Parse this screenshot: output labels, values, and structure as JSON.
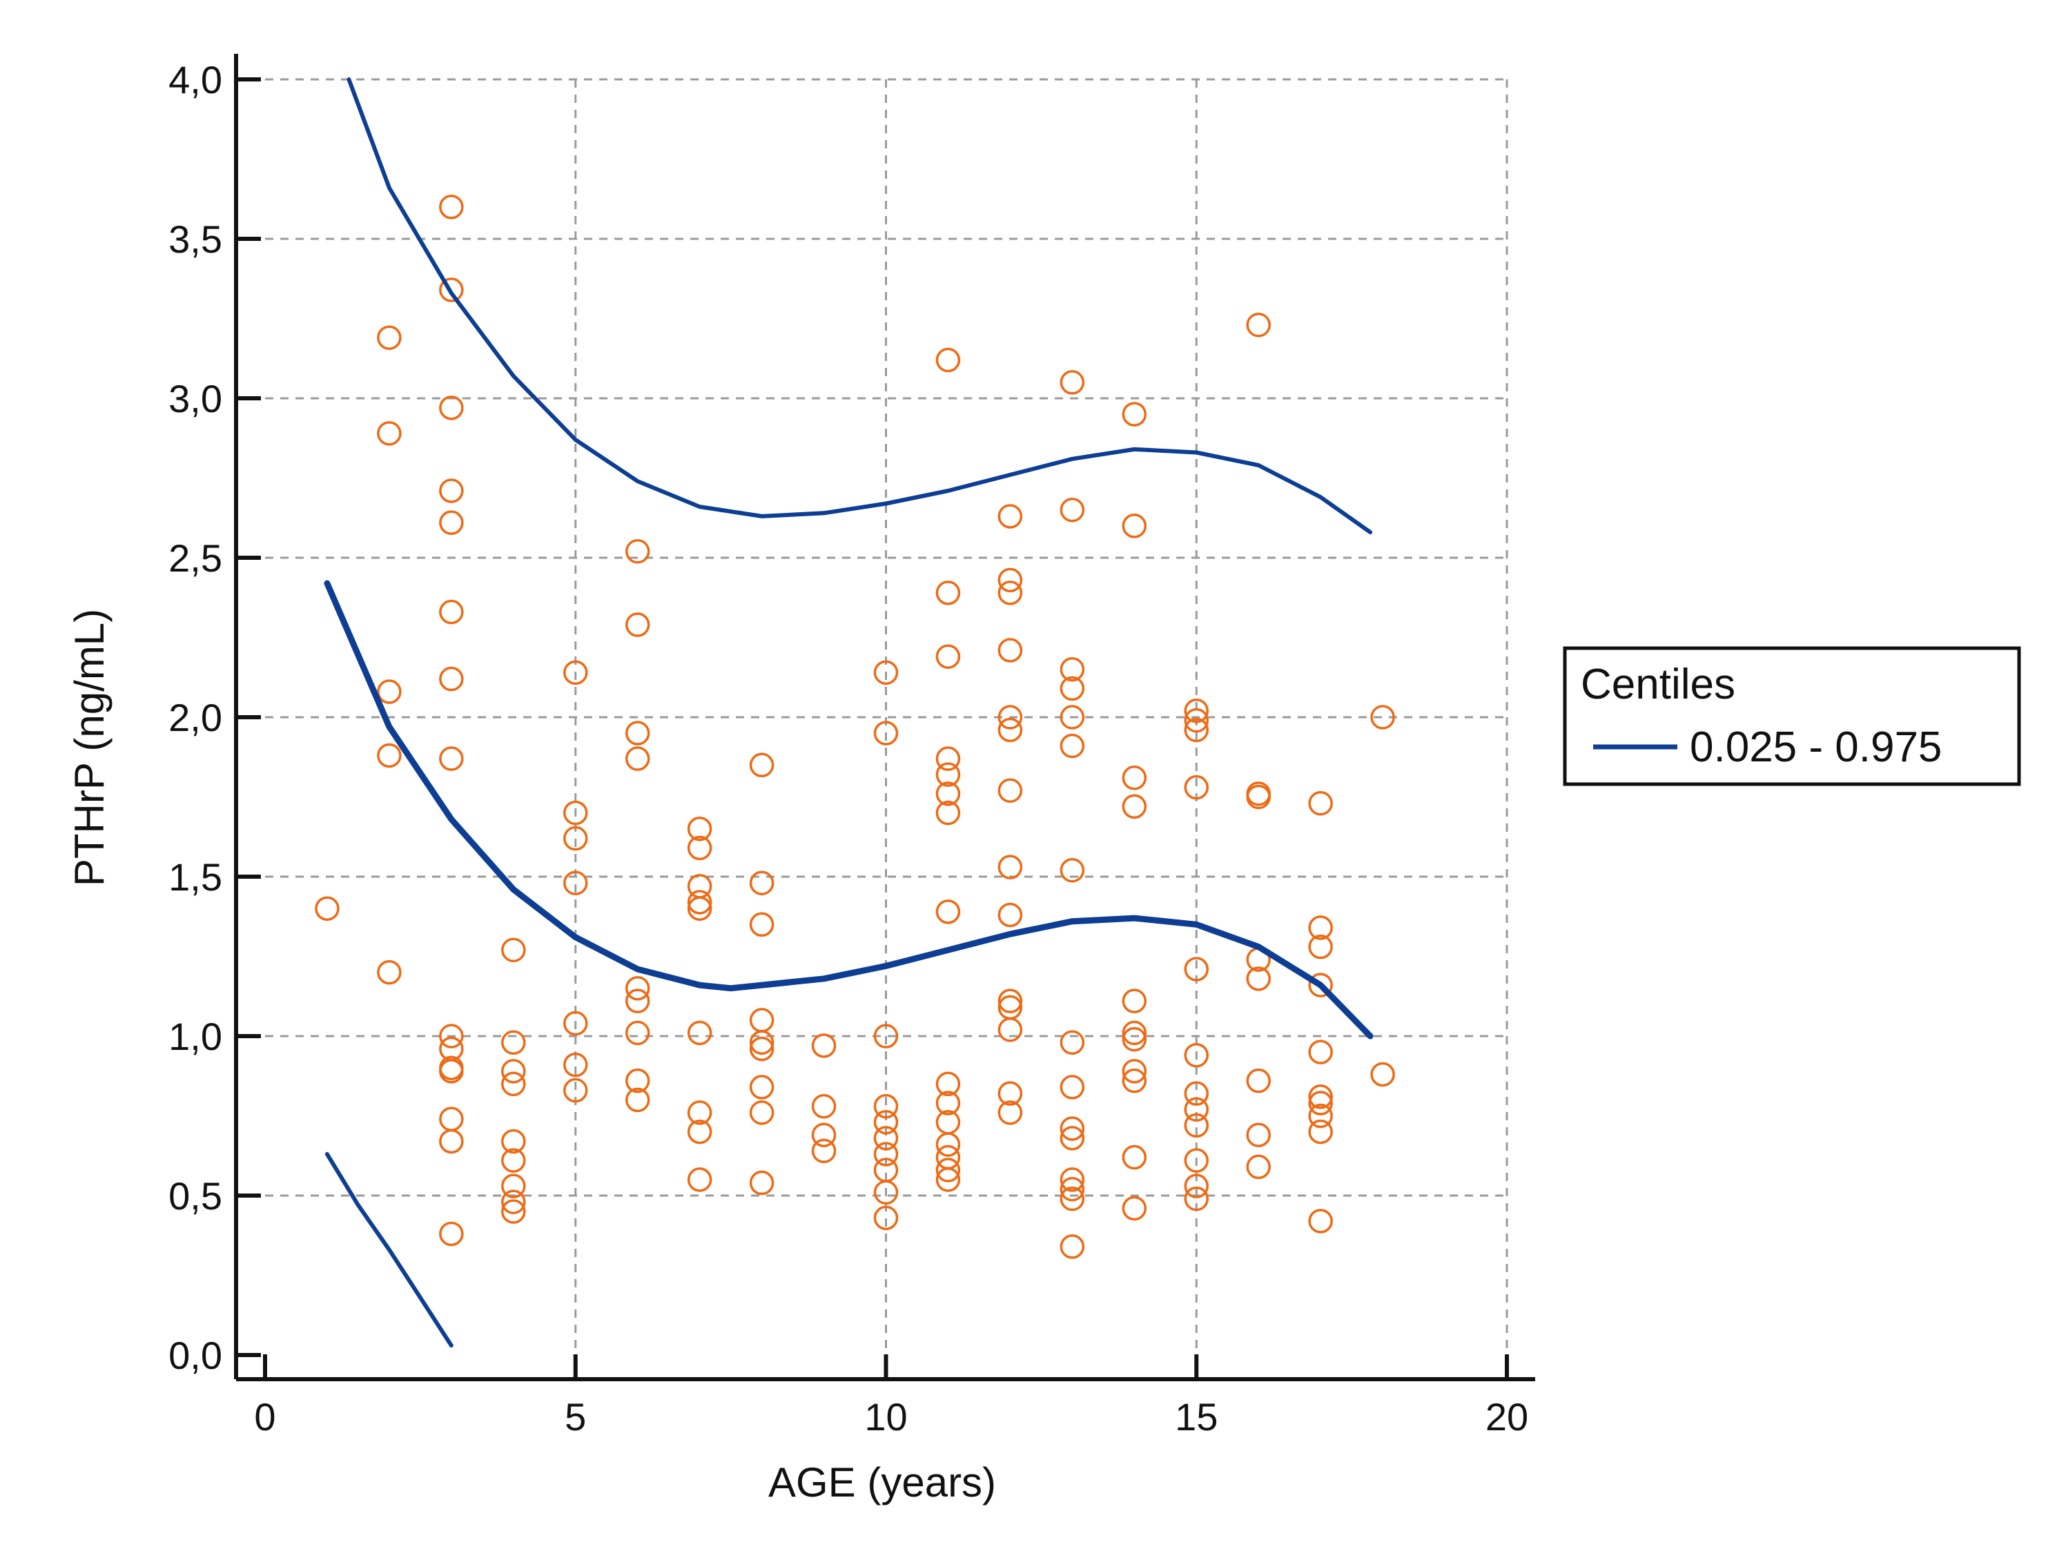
{
  "chart_data": {
    "type": "scatter",
    "title": "",
    "xlabel": "AGE (years)",
    "ylabel": "PTHrP (ng/mL)",
    "xlim": [
      0,
      20
    ],
    "ylim": [
      0,
      4.0
    ],
    "grid": true,
    "x_ticks": [
      0,
      5,
      10,
      15,
      20
    ],
    "y_ticks": [
      0.0,
      0.5,
      1.0,
      1.5,
      2.0,
      2.5,
      3.0,
      3.5,
      4.0
    ],
    "x_tick_labels": [
      "0",
      "5",
      "10",
      "15",
      "20"
    ],
    "y_tick_labels": [
      "0,0",
      "0,5",
      "1,0",
      "1,5",
      "2,0",
      "2,5",
      "3,0",
      "3,5",
      "4,0"
    ],
    "colors": {
      "points": "#ee6a14",
      "centile_lines": "#0d3e93",
      "grid": "#9a9a9a",
      "axis": "#111111"
    },
    "legend": {
      "title": "Centiles",
      "entries": [
        {
          "label": "0.025 - 0.975",
          "color": "#0d3e93"
        }
      ],
      "position": "right"
    },
    "series": [
      {
        "name": "observations",
        "kind": "scatter",
        "points": [
          [
            1,
            1.4
          ],
          [
            2,
            3.19
          ],
          [
            2,
            2.89
          ],
          [
            2,
            2.08
          ],
          [
            2,
            1.88
          ],
          [
            2,
            1.2
          ],
          [
            3,
            3.6
          ],
          [
            3,
            3.34
          ],
          [
            3,
            2.97
          ],
          [
            3,
            2.71
          ],
          [
            3,
            2.61
          ],
          [
            3,
            2.33
          ],
          [
            3,
            2.12
          ],
          [
            3,
            1.87
          ],
          [
            3,
            1.0
          ],
          [
            3,
            0.96
          ],
          [
            3,
            0.9
          ],
          [
            3,
            0.89
          ],
          [
            3,
            0.74
          ],
          [
            3,
            0.67
          ],
          [
            3,
            0.38
          ],
          [
            4,
            1.27
          ],
          [
            4,
            0.98
          ],
          [
            4,
            0.89
          ],
          [
            4,
            0.85
          ],
          [
            4,
            0.67
          ],
          [
            4,
            0.61
          ],
          [
            4,
            0.53
          ],
          [
            4,
            0.48
          ],
          [
            4,
            0.45
          ],
          [
            5,
            2.14
          ],
          [
            5,
            1.7
          ],
          [
            5,
            1.62
          ],
          [
            5,
            1.48
          ],
          [
            5,
            1.04
          ],
          [
            5,
            0.91
          ],
          [
            5,
            0.83
          ],
          [
            6,
            2.52
          ],
          [
            6,
            2.29
          ],
          [
            6,
            1.95
          ],
          [
            6,
            1.87
          ],
          [
            6,
            1.15
          ],
          [
            6,
            1.11
          ],
          [
            6,
            1.01
          ],
          [
            6,
            0.86
          ],
          [
            6,
            0.8
          ],
          [
            7,
            1.65
          ],
          [
            7,
            1.59
          ],
          [
            7,
            1.47
          ],
          [
            7,
            1.42
          ],
          [
            7,
            1.4
          ],
          [
            7,
            1.01
          ],
          [
            7,
            0.76
          ],
          [
            7,
            0.7
          ],
          [
            7,
            0.55
          ],
          [
            8,
            1.85
          ],
          [
            8,
            1.48
          ],
          [
            8,
            1.35
          ],
          [
            8,
            1.05
          ],
          [
            8,
            0.98
          ],
          [
            8,
            0.96
          ],
          [
            8,
            0.84
          ],
          [
            8,
            0.76
          ],
          [
            8,
            0.54
          ],
          [
            9,
            0.97
          ],
          [
            9,
            0.78
          ],
          [
            9,
            0.69
          ],
          [
            9,
            0.64
          ],
          [
            10,
            2.14
          ],
          [
            10,
            1.95
          ],
          [
            10,
            1.0
          ],
          [
            10,
            0.78
          ],
          [
            10,
            0.73
          ],
          [
            10,
            0.68
          ],
          [
            10,
            0.63
          ],
          [
            10,
            0.58
          ],
          [
            10,
            0.51
          ],
          [
            10,
            0.43
          ],
          [
            11,
            3.12
          ],
          [
            11,
            2.39
          ],
          [
            11,
            2.19
          ],
          [
            11,
            1.87
          ],
          [
            11,
            1.82
          ],
          [
            11,
            1.76
          ],
          [
            11,
            1.7
          ],
          [
            11,
            1.39
          ],
          [
            11,
            0.85
          ],
          [
            11,
            0.79
          ],
          [
            11,
            0.73
          ],
          [
            11,
            0.66
          ],
          [
            11,
            0.62
          ],
          [
            11,
            0.58
          ],
          [
            11,
            0.55
          ],
          [
            12,
            2.63
          ],
          [
            12,
            2.43
          ],
          [
            12,
            2.39
          ],
          [
            12,
            2.21
          ],
          [
            12,
            2.0
          ],
          [
            12,
            1.96
          ],
          [
            12,
            1.77
          ],
          [
            12,
            1.53
          ],
          [
            12,
            1.38
          ],
          [
            12,
            1.11
          ],
          [
            12,
            1.09
          ],
          [
            12,
            1.02
          ],
          [
            12,
            0.82
          ],
          [
            12,
            0.76
          ],
          [
            13,
            3.05
          ],
          [
            13,
            2.65
          ],
          [
            13,
            2.15
          ],
          [
            13,
            2.09
          ],
          [
            13,
            2.0
          ],
          [
            13,
            1.91
          ],
          [
            13,
            1.52
          ],
          [
            13,
            0.98
          ],
          [
            13,
            0.84
          ],
          [
            13,
            0.71
          ],
          [
            13,
            0.68
          ],
          [
            13,
            0.55
          ],
          [
            13,
            0.52
          ],
          [
            13,
            0.49
          ],
          [
            13,
            0.34
          ],
          [
            14,
            2.95
          ],
          [
            14,
            2.6
          ],
          [
            14,
            1.81
          ],
          [
            14,
            1.72
          ],
          [
            14,
            1.11
          ],
          [
            14,
            1.01
          ],
          [
            14,
            0.99
          ],
          [
            14,
            0.89
          ],
          [
            14,
            0.86
          ],
          [
            14,
            0.62
          ],
          [
            14,
            0.46
          ],
          [
            15,
            2.02
          ],
          [
            15,
            1.99
          ],
          [
            15,
            1.96
          ],
          [
            15,
            1.78
          ],
          [
            15,
            1.21
          ],
          [
            15,
            0.94
          ],
          [
            15,
            0.82
          ],
          [
            15,
            0.77
          ],
          [
            15,
            0.72
          ],
          [
            15,
            0.61
          ],
          [
            15,
            0.53
          ],
          [
            15,
            0.49
          ],
          [
            16,
            3.23
          ],
          [
            16,
            1.76
          ],
          [
            16,
            1.75
          ],
          [
            16,
            1.24
          ],
          [
            16,
            1.18
          ],
          [
            16,
            0.86
          ],
          [
            16,
            0.69
          ],
          [
            16,
            0.59
          ],
          [
            17,
            1.73
          ],
          [
            17,
            1.34
          ],
          [
            17,
            1.28
          ],
          [
            17,
            1.16
          ],
          [
            17,
            0.95
          ],
          [
            17,
            0.81
          ],
          [
            17,
            0.79
          ],
          [
            17,
            0.75
          ],
          [
            17,
            0.7
          ],
          [
            17,
            0.42
          ],
          [
            18,
            2.0
          ],
          [
            18,
            0.88
          ]
        ]
      },
      {
        "name": "0.975 centile",
        "kind": "line",
        "points": [
          [
            1.35,
            4.0
          ],
          [
            2.0,
            3.66
          ],
          [
            3.0,
            3.33
          ],
          [
            4.0,
            3.07
          ],
          [
            5.0,
            2.87
          ],
          [
            6.0,
            2.74
          ],
          [
            7.0,
            2.66
          ],
          [
            8.0,
            2.63
          ],
          [
            9.0,
            2.64
          ],
          [
            10.0,
            2.67
          ],
          [
            11.0,
            2.71
          ],
          [
            12.0,
            2.76
          ],
          [
            13.0,
            2.81
          ],
          [
            14.0,
            2.84
          ],
          [
            15.0,
            2.83
          ],
          [
            16.0,
            2.79
          ],
          [
            17.0,
            2.69
          ],
          [
            17.8,
            2.58
          ]
        ]
      },
      {
        "name": "median",
        "kind": "line",
        "points": [
          [
            1.0,
            2.42
          ],
          [
            2.0,
            1.97
          ],
          [
            3.0,
            1.68
          ],
          [
            4.0,
            1.46
          ],
          [
            5.0,
            1.31
          ],
          [
            6.0,
            1.21
          ],
          [
            7.0,
            1.16
          ],
          [
            7.5,
            1.15
          ],
          [
            8.0,
            1.16
          ],
          [
            9.0,
            1.18
          ],
          [
            10.0,
            1.22
          ],
          [
            11.0,
            1.27
          ],
          [
            12.0,
            1.32
          ],
          [
            13.0,
            1.36
          ],
          [
            14.0,
            1.37
          ],
          [
            15.0,
            1.35
          ],
          [
            16.0,
            1.28
          ],
          [
            17.0,
            1.16
          ],
          [
            17.8,
            1.0
          ]
        ]
      },
      {
        "name": "0.025 centile",
        "kind": "line",
        "points": [
          [
            1.0,
            0.63
          ],
          [
            1.5,
            0.47
          ],
          [
            2.0,
            0.33
          ],
          [
            2.5,
            0.18
          ],
          [
            3.0,
            0.03
          ]
        ]
      }
    ]
  }
}
